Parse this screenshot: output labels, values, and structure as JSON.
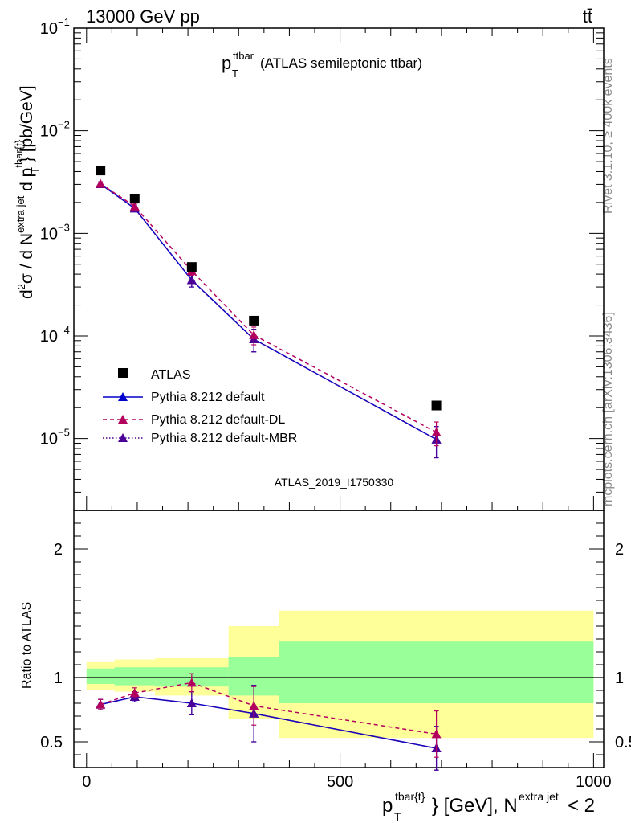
{
  "header": {
    "left": "13000 GeV pp",
    "right": "tt̄"
  },
  "side": {
    "rivet": "Rivet 3.1.10, ≥ 400k events",
    "mcplots": "mcplots.cern.ch [arXiv:1306.3436]"
  },
  "main": {
    "title_main": "p",
    "title_sup": "ttbar",
    "title_sub": "T",
    "title_rest": "(ATLAS semileptonic ttbar)",
    "ylabel": "d²σ / d N^{extra jet} d p_T^{tbar{t}} [pb/GeV]",
    "watermark": "ATLAS_2019_I1750330"
  },
  "ratio": {
    "ylabel": "Ratio to ATLAS"
  },
  "xaxis": {
    "label": "p_T^{tbar{t}} [GeV], N^{extra jet} < 2"
  },
  "legend": {
    "atlas": "ATLAS",
    "default": "Pythia 8.212 default",
    "dl": "Pythia 8.212 default-DL",
    "mbr": "Pythia 8.212 default-MBR"
  },
  "colors": {
    "data": "#000000",
    "default": "#0000cc",
    "dl": "#b3005f",
    "mbr": "#4b0096",
    "band_inner": "#99ff99",
    "band_outer": "#ffff99"
  },
  "chart_data": [
    {
      "type": "scatter",
      "name": "main",
      "xlim": [
        -25,
        1020
      ],
      "ylim_log10": [
        -5.7,
        -1
      ],
      "yscale": "log",
      "yticks_major": [
        "10^-5",
        "10^-4",
        "10^-3",
        "10^-2",
        "10^-1"
      ],
      "series": [
        {
          "name": "ATLAS",
          "x": [
            27.5,
            95,
            207.5,
            330,
            690
          ],
          "y": [
            0.0041,
            0.00218,
            0.00047,
            0.000141,
            2.1e-05
          ]
        },
        {
          "name": "Pythia 8.212 default",
          "x": [
            27.5,
            95,
            207.5,
            330,
            690
          ],
          "y": [
            0.00302,
            0.00175,
            0.00035,
            9.3e-05,
            9.8e-06
          ],
          "yerr": [
            0.00015,
            0.0001,
            5e-05,
            2.3e-05,
            3.3e-06
          ]
        },
        {
          "name": "Pythia 8.212 default-DL",
          "x": [
            27.5,
            95,
            207.5,
            330,
            690
          ],
          "y": [
            0.00305,
            0.00183,
            0.00043,
            0.000102,
            1.15e-05
          ],
          "yerr": [
            0.00012,
            9e-05,
            4e-05,
            2e-05,
            3e-06
          ]
        },
        {
          "name": "Pythia 8.212 default-MBR",
          "x": [
            27.5,
            95,
            207.5,
            330,
            690
          ],
          "y": [
            0.00302,
            0.00175,
            0.00035,
            9.3e-05,
            9.8e-06
          ],
          "yerr": [
            0.00015,
            0.0001,
            5e-05,
            2.3e-05,
            3.3e-06
          ]
        }
      ]
    },
    {
      "type": "scatter",
      "name": "ratio",
      "xlim": [
        -25,
        1020
      ],
      "ylim": [
        0.3,
        2.3
      ],
      "yticks": [
        0.5,
        1,
        2
      ],
      "xticks": [
        0,
        500,
        1000
      ],
      "bins": [
        {
          "x0": 0,
          "x1": 55,
          "inner": [
            0.95,
            1.07
          ],
          "outer": [
            0.9,
            1.12
          ]
        },
        {
          "x0": 55,
          "x1": 135,
          "inner": [
            0.94,
            1.08
          ],
          "outer": [
            0.89,
            1.14
          ]
        },
        {
          "x0": 135,
          "x1": 280,
          "inner": [
            0.93,
            1.08
          ],
          "outer": [
            0.86,
            1.15
          ]
        },
        {
          "x0": 280,
          "x1": 380,
          "inner": [
            0.86,
            1.16
          ],
          "outer": [
            0.68,
            1.4
          ]
        },
        {
          "x0": 380,
          "x1": 1000,
          "inner": [
            0.8,
            1.28
          ],
          "outer": [
            0.53,
            1.52
          ]
        }
      ],
      "series": [
        {
          "name": "Pythia 8.212 default",
          "x": [
            27.5,
            95,
            207.5,
            330,
            690
          ],
          "y": [
            0.79,
            0.85,
            0.8,
            0.72,
            0.45
          ],
          "yerr": [
            0.04,
            0.04,
            0.09,
            0.22,
            0.17
          ]
        },
        {
          "name": "Pythia 8.212 default-DL",
          "x": [
            27.5,
            95,
            207.5,
            330,
            690
          ],
          "y": [
            0.79,
            0.88,
            0.96,
            0.78,
            0.56
          ],
          "yerr": [
            0.04,
            0.04,
            0.07,
            0.15,
            0.18
          ]
        },
        {
          "name": "Pythia 8.212 default-MBR",
          "x": [
            27.5,
            95,
            207.5,
            330,
            690
          ],
          "y": [
            0.79,
            0.85,
            0.8,
            0.72,
            0.45
          ],
          "yerr": [
            0.04,
            0.04,
            0.09,
            0.22,
            0.17
          ]
        }
      ]
    }
  ]
}
